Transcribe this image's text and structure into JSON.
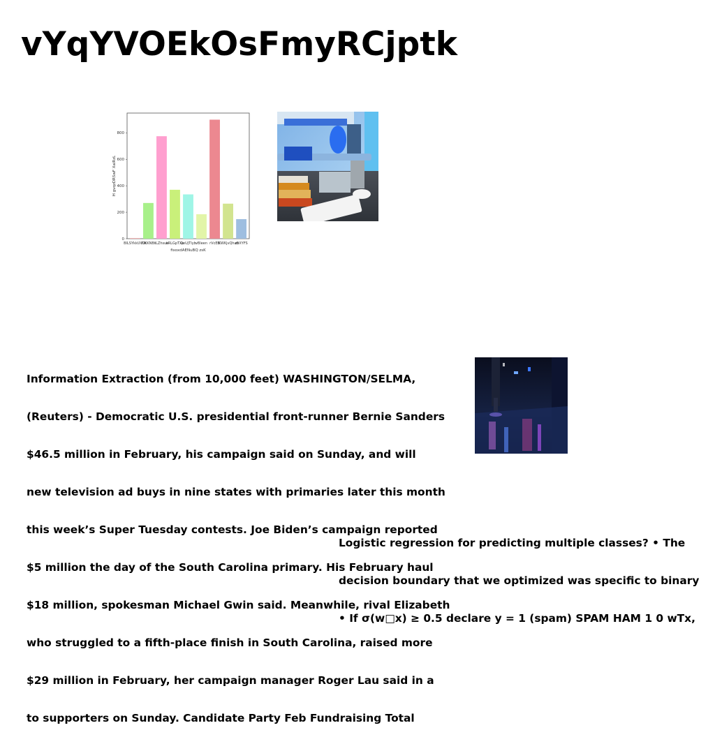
{
  "heading": "vYqYVOEkOsFmyRCjptk",
  "chart_data": {
    "type": "bar",
    "categories": [
      "BILSYkkUVOt",
      "lUKKNBt",
      "iLZhsuk",
      "oRLGpTXe",
      "QeUjTIyb",
      "vBleen",
      "rVcEB",
      "IKWKjvQhab",
      "zfiXYFS"
    ],
    "values": [
      3,
      270,
      775,
      370,
      335,
      185,
      900,
      265,
      148
    ],
    "colors": [
      "#f08080",
      "#a8f08a",
      "#ff9fcf",
      "#c9f07a",
      "#9ff5e6",
      "#e2f5a8",
      "#ec8890",
      "#d2e48f",
      "#9ebee0"
    ],
    "ylabel": "H gvqzDRSwF XaiRzL",
    "xlabel": "fixoxdAENuBQ zsK",
    "ylim": [
      0,
      950
    ],
    "yticks": [
      0,
      200,
      400,
      600,
      800
    ]
  },
  "paragraph_1": [
    "Information Extraction (from 10,000 feet) WASHINGTON/SELMA,",
    "(Reuters) - Democratic U.S. presidential front-runner Bernie Sanders",
    "$46.5 million in February, his campaign said on Sunday, and will",
    "new television ad buys in nine states with primaries later this month",
    "this week’s Super Tuesday contests. Joe Biden’s campaign reported",
    "$5 million the day of the South Carolina primary. His February haul",
    "$18 million, spokesman Michael Gwin said. Meanwhile, rival Elizabeth",
    "who struggled to a fifth-place finish in South Carolina, raised more",
    "$29 million in February, her campaign manager Roger Lau said in a",
    "to supporters on Sunday. Candidate Party Feb Fundraising Total"
  ],
  "paragraph_2": [
    "Logistic regression for predicting multiple classes? • The",
    "decision boundary that we optimized was specific to binary",
    "• If σ(w□x) ≥ 0.5 declare y = 1 (spam) SPAM HAM 1 0 wTx,"
  ]
}
